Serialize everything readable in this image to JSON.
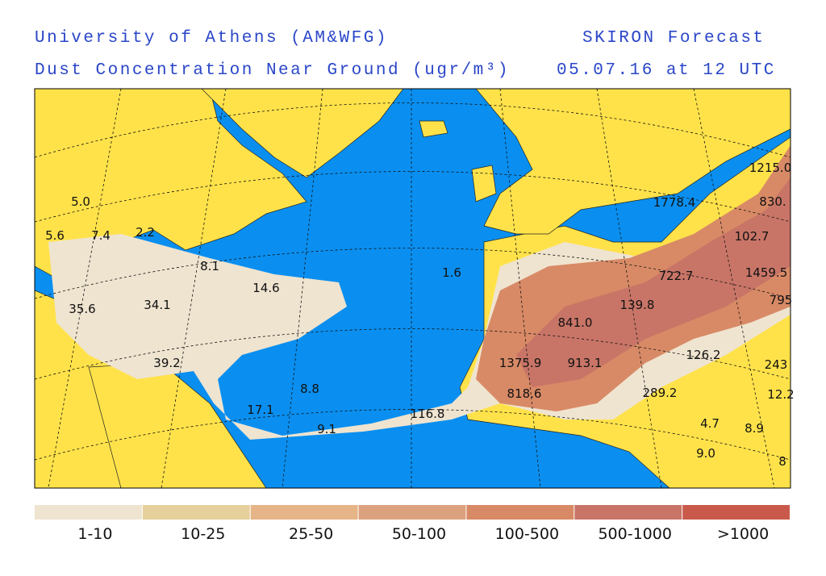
{
  "header": {
    "institution": "University of Athens (AM&WFG)",
    "product": "SKIRON Forecast",
    "field": "Dust Concentration Near Ground (ugr/m³)",
    "valid_time": "05.07.16 at 12 UTC"
  },
  "map": {
    "values": [
      "5.0",
      "5.6",
      "7.4",
      "2.2",
      "8.1",
      "14.6",
      "1.6",
      "35.6",
      "34.1",
      "39.2",
      "8.8",
      "17.1",
      "9.1",
      "116.8",
      "1375.9",
      "913.1",
      "818.6",
      "841.0",
      "139.8",
      "722.7",
      "102.7",
      "1459.5",
      "1778.4",
      "1215.0",
      "830.",
      "795",
      "126.2",
      "289.2",
      "243",
      "4.7",
      "8.9",
      "9.0",
      "12.2",
      "8"
    ]
  },
  "legend": {
    "items": [
      {
        "label": "1-10",
        "color": "#efe4d0"
      },
      {
        "label": "10-25",
        "color": "#e6d09c"
      },
      {
        "label": "25-50",
        "color": "#e5b487"
      },
      {
        "label": "50-100",
        "color": "#dca27f"
      },
      {
        "label": "100-500",
        "color": "#d88a66"
      },
      {
        "label": "500-1000",
        "color": "#c87567"
      },
      {
        "label": ">1000",
        "color": "#c95a4b"
      }
    ]
  }
}
